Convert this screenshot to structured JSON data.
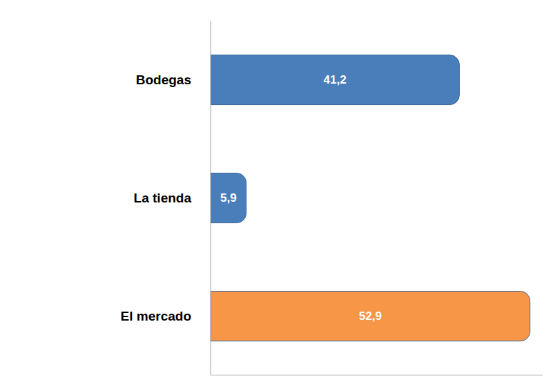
{
  "chart_data": {
    "type": "bar",
    "orientation": "horizontal",
    "categories": [
      "Bodegas",
      "La tienda",
      "El mercado"
    ],
    "values": [
      41.2,
      5.9,
      52.9
    ],
    "value_labels": [
      "41,2",
      "5,9",
      "52,9"
    ],
    "colors": [
      "#4a7ebb",
      "#4a7ebb",
      "#f79646"
    ],
    "xlim": [
      0,
      55
    ],
    "xticks": [],
    "data_labels": true,
    "tick_labels": "y",
    "grid": false
  }
}
